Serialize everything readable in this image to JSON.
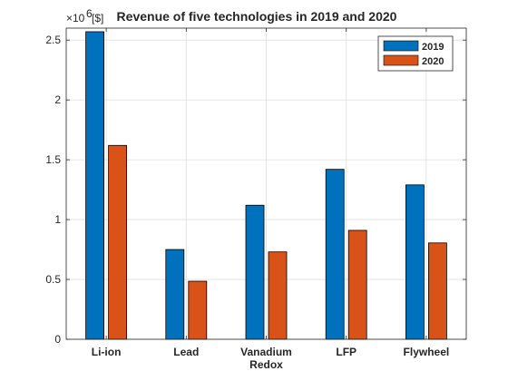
{
  "chart_data": {
    "type": "bar",
    "title": "Revenue of five technologies in 2019 and 2020",
    "ylabel_unit": "[$]",
    "y_exponent_base": "×10",
    "y_exponent_power": "6",
    "categories": [
      [
        "Li-ion"
      ],
      [
        "Lead"
      ],
      [
        "Vanadium",
        "Redox"
      ],
      [
        "LFP"
      ],
      [
        "Flywheel"
      ]
    ],
    "series": [
      {
        "name": "2019",
        "color": "#0072BD",
        "values": [
          2.57,
          0.75,
          1.12,
          1.42,
          1.29
        ]
      },
      {
        "name": "2020",
        "color": "#D95319",
        "values": [
          1.62,
          0.485,
          0.73,
          0.91,
          0.805
        ]
      }
    ],
    "ylim": [
      0,
      2.6
    ],
    "yticks": [
      0,
      0.5,
      1,
      1.5,
      2,
      2.5
    ],
    "ytick_labels": [
      "0",
      "0.5",
      "1",
      "1.5",
      "2",
      "2.5"
    ],
    "grid": true,
    "legend_position": "top-right"
  }
}
